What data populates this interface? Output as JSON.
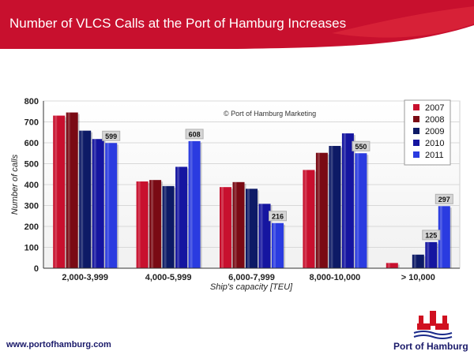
{
  "header": {
    "title": "Number of VLCS Calls at the Port of Hamburg Increases"
  },
  "footer": {
    "website": "www.portofhamburg.com",
    "logo_text": "Port of Hamburg"
  },
  "colors": {
    "banner": "#c8102e",
    "banner_highlight": "#e3303f",
    "logo_red": "#d01020",
    "logo_blue": "#1a2a8a"
  },
  "chart_data": {
    "type": "bar",
    "categories": [
      "2,000-3,999",
      "4,000-5,999",
      "6,000-7,999",
      "8,000-10,000",
      "> 10,000"
    ],
    "series": [
      {
        "name": "2007",
        "color": "#c8102e",
        "values": [
          730,
          415,
          388,
          470,
          25
        ]
      },
      {
        "name": "2008",
        "color": "#7a0a14",
        "values": [
          745,
          422,
          412,
          552,
          0
        ]
      },
      {
        "name": "2009",
        "color": "#0d1a66",
        "values": [
          658,
          393,
          380,
          585,
          65
        ]
      },
      {
        "name": "2010",
        "color": "#1515a0",
        "values": [
          618,
          485,
          308,
          645,
          125
        ]
      },
      {
        "name": "2011",
        "color": "#2a3be0",
        "values": [
          599,
          608,
          216,
          550,
          297
        ]
      }
    ],
    "data_labels": [
      {
        "category": "2,000-3,999",
        "series": "2011",
        "text": "599"
      },
      {
        "category": "4,000-5,999",
        "series": "2011",
        "text": "608"
      },
      {
        "category": "6,000-7,999",
        "series": "2011",
        "text": "216"
      },
      {
        "category": "8,000-10,000",
        "series": "2011",
        "text": "550"
      },
      {
        "category": "> 10,000",
        "series": "2010",
        "text": "125"
      },
      {
        "category": "> 10,000",
        "series": "2011",
        "text": "297"
      }
    ],
    "yticks": [
      "0",
      "100",
      "200",
      "300",
      "400",
      "500",
      "600",
      "700",
      "800"
    ],
    "ylim": [
      0,
      800
    ],
    "xlabel": "Ship's    capacity      [TEU]",
    "ylabel": "Number    of    calls",
    "watermark": "© Port of Hamburg Marketing",
    "legend_position": "top-right",
    "grid": "horizontal"
  }
}
